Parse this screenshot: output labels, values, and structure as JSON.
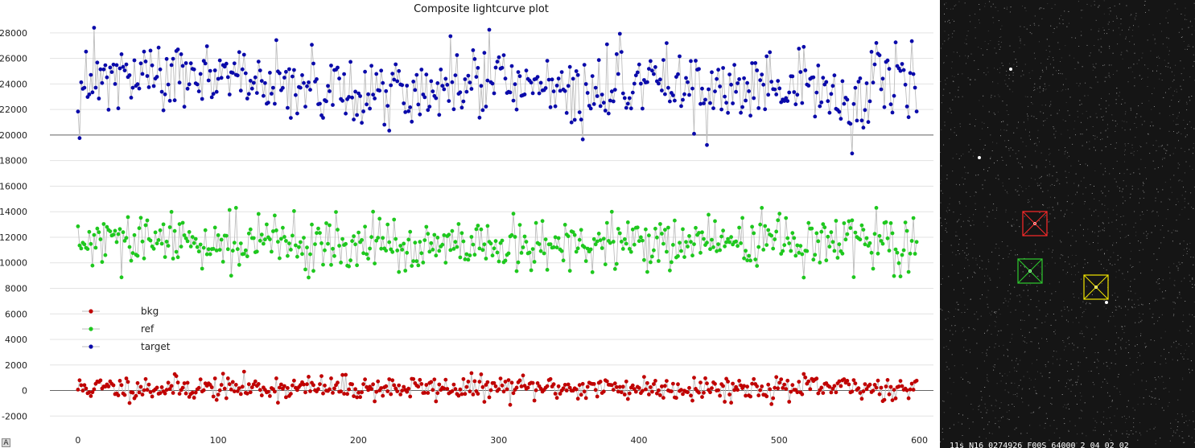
{
  "chart_data": {
    "type": "scatter",
    "title": "Composite lightcurve plot",
    "xlim": [
      -20,
      610
    ],
    "ylim": [
      -2800,
      29000
    ],
    "xticks": [
      0,
      100,
      200,
      300,
      400,
      500,
      600
    ],
    "yticks": [
      -2000,
      0,
      2000,
      4000,
      6000,
      8000,
      10000,
      12000,
      14000,
      16000,
      18000,
      20000,
      22000,
      24000,
      26000,
      28000
    ],
    "x_range": [
      0,
      598
    ],
    "grid": "horizontal",
    "legend_position": "left-middle",
    "series": [
      {
        "name": "bkg",
        "color": "#c00000",
        "mean": 200,
        "spread": 520,
        "approx_min": -1500,
        "approx_max": 1600
      },
      {
        "name": "ref",
        "color": "#1ec81e",
        "mean": 11400,
        "spread": 1150,
        "approx_min": 7300,
        "approx_max": 14300
      },
      {
        "name": "target",
        "color": "#0a0aaa",
        "mean": 24000,
        "spread": 1500,
        "approx_min": 18200,
        "approx_max": 28400
      }
    ]
  },
  "ui": {
    "corner_badge": "A",
    "image_footer": "11s N16 0274926 F00S 64000 2 04 02 02"
  },
  "colors": {
    "line": "#bdbdbd",
    "grid": "#e3e3e3",
    "zero_line": "#666666",
    "box_target": "#ff2a2a",
    "box_ref": "#2ecc2e",
    "box_bkg": "#f2e600"
  }
}
